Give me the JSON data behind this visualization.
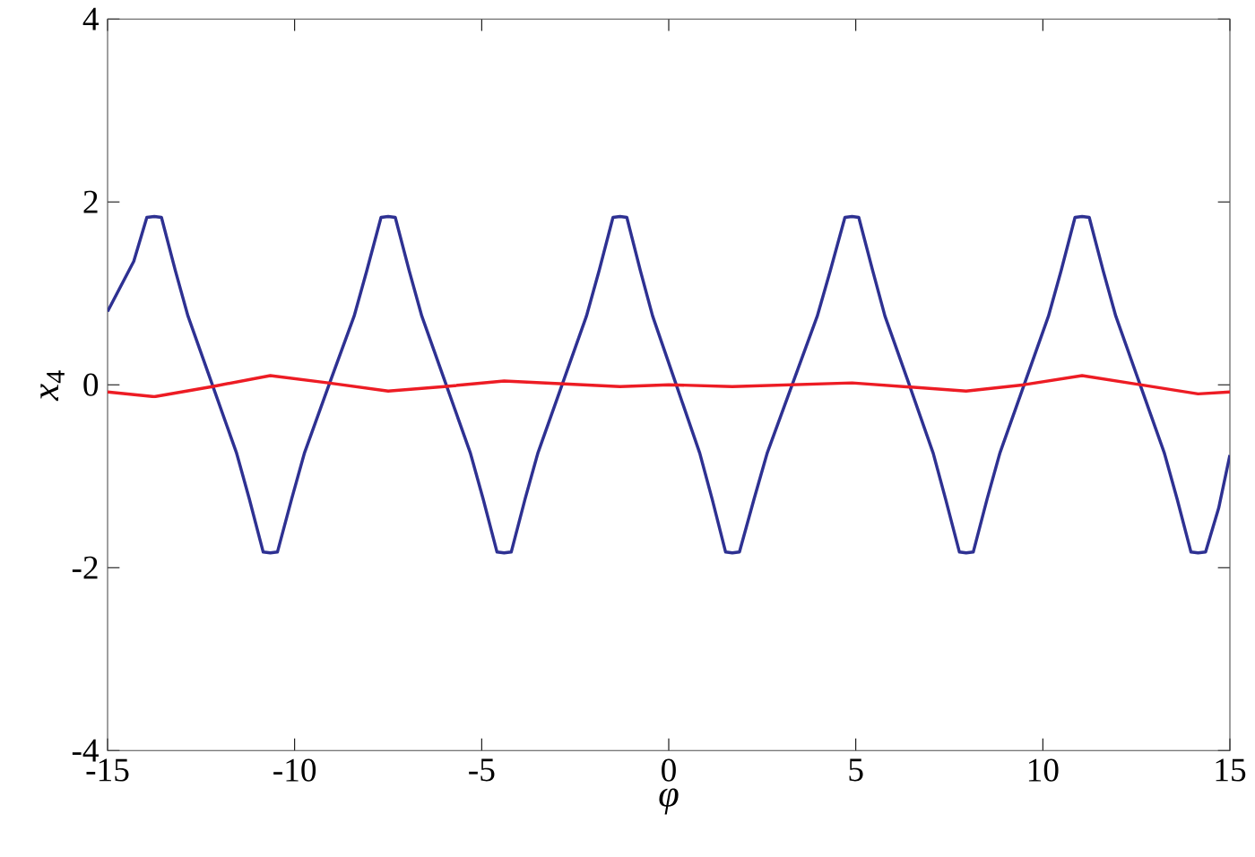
{
  "chart_data": {
    "type": "line",
    "xlabel": "φ",
    "ylabel": "*x*$_{4}$",
    "xlim": [
      -15,
      15
    ],
    "ylim": [
      -4,
      4
    ],
    "xticks": [
      -15,
      -10,
      -5,
      0,
      5,
      10,
      15
    ],
    "yticks": [
      -4,
      -2,
      0,
      2,
      4
    ],
    "grid": false,
    "series": [
      {
        "color": "#2e3192",
        "x": [
          -15,
          -14.3,
          -13.95,
          -13.75,
          -13.56,
          -13.19,
          -12.85,
          -12.2,
          -11.55,
          -11.21,
          -10.84,
          -10.65,
          -10.46,
          -10.08,
          -9.74,
          -9.08,
          -8.41,
          -8.07,
          -7.69,
          -7.5,
          -7.31,
          -6.94,
          -6.6,
          -5.95,
          -5.3,
          -4.96,
          -4.59,
          -4.4,
          -4.21,
          -3.84,
          -3.5,
          -2.85,
          -2.2,
          -1.86,
          -1.49,
          -1.3,
          -1.12,
          -0.76,
          -0.43,
          0.2,
          0.83,
          1.16,
          1.52,
          1.7,
          1.89,
          2.28,
          2.63,
          3.3,
          3.97,
          4.32,
          4.71,
          4.9,
          5.08,
          5.45,
          5.78,
          6.43,
          7.07,
          7.4,
          7.77,
          7.95,
          8.14,
          8.51,
          8.85,
          9.5,
          10.15,
          10.49,
          10.86,
          11.05,
          11.24,
          11.61,
          11.95,
          12.6,
          13.25,
          13.59,
          13.96,
          14.15,
          14.35,
          14.7,
          15
        ],
        "values": [
          0.8,
          1.35,
          1.83,
          1.84,
          1.83,
          1.25,
          0.75,
          0,
          -0.75,
          -1.25,
          -1.83,
          -1.84,
          -1.83,
          -1.25,
          -0.75,
          0,
          0.75,
          1.25,
          1.83,
          1.84,
          1.83,
          1.25,
          0.75,
          0,
          -0.75,
          -1.25,
          -1.83,
          -1.84,
          -1.83,
          -1.25,
          -0.75,
          0,
          0.75,
          1.25,
          1.83,
          1.84,
          1.83,
          1.25,
          0.75,
          0,
          -0.75,
          -1.25,
          -1.83,
          -1.84,
          -1.83,
          -1.25,
          -0.75,
          0,
          0.75,
          1.25,
          1.83,
          1.84,
          1.83,
          1.25,
          0.75,
          0,
          -0.75,
          -1.25,
          -1.83,
          -1.84,
          -1.83,
          -1.25,
          -0.75,
          0,
          0.75,
          1.25,
          1.83,
          1.84,
          1.83,
          1.25,
          0.75,
          0,
          -0.75,
          -1.25,
          -1.83,
          -1.84,
          -1.83,
          -1.35,
          -0.77
        ]
      },
      {
        "color": "#ed1c24",
        "x": [
          -15,
          -13.75,
          -12.2,
          -10.65,
          -9.1,
          -7.5,
          -6,
          -4.4,
          -1.3,
          0,
          1.7,
          4.9,
          7.95,
          9.5,
          11.05,
          12.6,
          14.15,
          15
        ],
        "values": [
          -0.08,
          -0.13,
          -0.02,
          0.1,
          0.02,
          -0.07,
          -0.02,
          0.04,
          -0.02,
          0,
          -0.02,
          0.02,
          -0.07,
          0,
          0.1,
          0,
          -0.1,
          -0.08
        ]
      }
    ]
  }
}
